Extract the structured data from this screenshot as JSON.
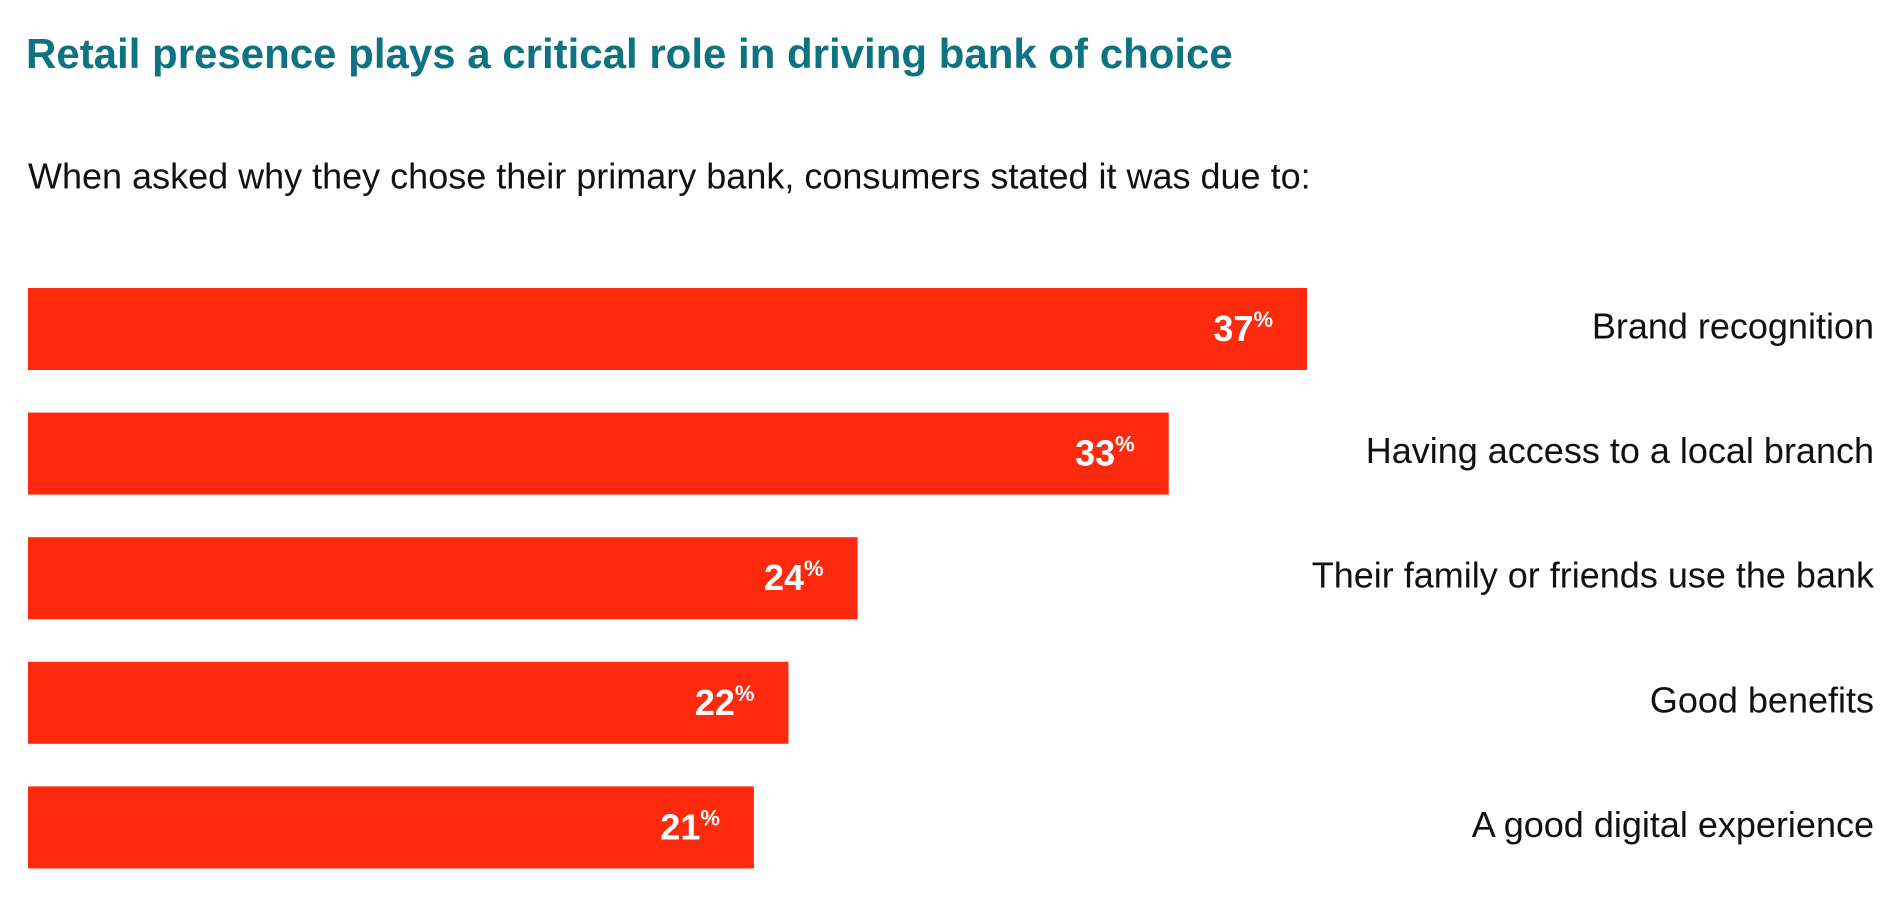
{
  "chart_data": {
    "type": "bar",
    "orientation": "horizontal",
    "title": "Retail presence plays a critical role in driving bank of choice",
    "subtitle": "When asked why they chose their primary bank, consumers stated it was due to:",
    "categories": [
      "Brand recognition",
      "Having access to a local branch",
      "Their family or friends use the bank",
      "Good benefits",
      "A good digital experience"
    ],
    "values": [
      37,
      33,
      24,
      22,
      21
    ],
    "value_labels": [
      "37%",
      "33%",
      "24%",
      "22%",
      "21%"
    ],
    "color": "#ff2a0e"
  }
}
